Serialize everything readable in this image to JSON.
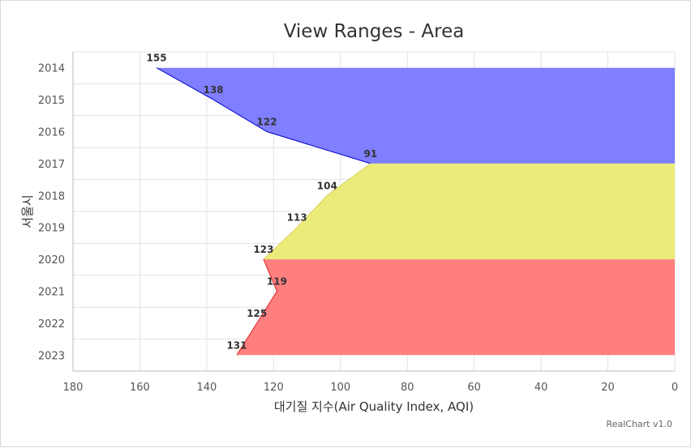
{
  "chart_data": {
    "type": "area",
    "orientation": "horizontal",
    "title": "View Ranges - Area",
    "xlabel": "대기질 지수(Air Quality Index, AQI)",
    "ylabel": "서울시",
    "categories": [
      "2014",
      "2015",
      "2016",
      "2017",
      "2018",
      "2019",
      "2020",
      "2021",
      "2022",
      "2023"
    ],
    "values": [
      155,
      138,
      122,
      91,
      104,
      113,
      123,
      119,
      125,
      131
    ],
    "value_axis": {
      "min": 0,
      "max": 180,
      "reversed": true,
      "ticks": [
        180,
        160,
        140,
        120,
        100,
        80,
        60,
        40,
        20,
        0
      ]
    },
    "view_ranges": [
      {
        "from_category": 0,
        "to_category": 3,
        "color": "#7f7fff",
        "line_color": "#0000cc"
      },
      {
        "from_category": 3,
        "to_category": 6,
        "color": "#ebeb7a",
        "line_color": "#d6d65a"
      },
      {
        "from_category": 6,
        "to_category": 9,
        "color": "#ff7f7f",
        "line_color": "#e02020"
      }
    ],
    "grid": true,
    "credit": "RealChart v1.0"
  }
}
